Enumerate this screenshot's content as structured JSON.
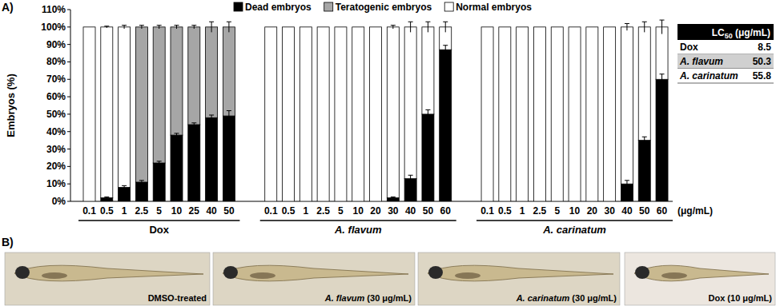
{
  "panel_labels": [
    "A)",
    "B)"
  ],
  "chart_data": {
    "type": "bar",
    "stacked": true,
    "y_label": "Embryos (%)",
    "x_label": "(μg/mL)",
    "categories": [
      "0.1",
      "0.5",
      "1",
      "2.5",
      "5",
      "10",
      "25",
      "40",
      "50",
      "0.1",
      "0.5",
      "1",
      "2.5",
      "5",
      "10",
      "20",
      "30",
      "40",
      "50",
      "60",
      "0.1",
      "0.5",
      "1",
      "2.5",
      "5",
      "10",
      "20",
      "30",
      "40",
      "50",
      "60"
    ],
    "groups": [
      {
        "label": "Dox",
        "size": 9
      },
      {
        "label": "A. flavum",
        "size": 11
      },
      {
        "label": "A. carinatum",
        "size": 11
      }
    ],
    "series": [
      {
        "name": "Dead embryos",
        "color": "#000000",
        "values": [
          0,
          2,
          8,
          11,
          22,
          38,
          44,
          48,
          49,
          0,
          0,
          0,
          0,
          0,
          0,
          0,
          2,
          13,
          50,
          87,
          0,
          0,
          0,
          0,
          0,
          0,
          0,
          0,
          10,
          35,
          70
        ],
        "errors": [
          null,
          0.5,
          1,
          1,
          1,
          1,
          1,
          1.5,
          3,
          null,
          null,
          null,
          null,
          null,
          null,
          null,
          0.5,
          2,
          2.5,
          2.5,
          null,
          null,
          null,
          null,
          null,
          null,
          null,
          null,
          2,
          2,
          3
        ]
      },
      {
        "name": "Teratogenic embryos",
        "color": "#a6a6a6",
        "values": [
          0,
          0,
          0,
          89,
          78,
          62,
          56,
          52,
          51,
          0,
          0,
          0,
          0,
          0,
          0,
          0,
          0,
          0,
          0,
          0,
          0,
          0,
          0,
          0,
          0,
          0,
          0,
          0,
          0,
          0,
          0
        ],
        "errors": [
          null,
          null,
          null,
          1,
          1,
          1,
          1,
          3,
          3,
          null,
          null,
          null,
          null,
          null,
          null,
          null,
          null,
          null,
          null,
          null,
          null,
          null,
          null,
          null,
          null,
          null,
          null,
          null,
          null,
          null,
          null
        ]
      },
      {
        "name": "Normal embryos",
        "color": "#ffffff",
        "values": [
          100,
          98,
          92,
          0,
          0,
          0,
          0,
          0,
          0,
          100,
          100,
          100,
          100,
          100,
          100,
          100,
          98,
          87,
          50,
          13,
          100,
          100,
          100,
          100,
          100,
          100,
          100,
          100,
          90,
          65,
          30
        ],
        "errors": [
          null,
          0.5,
          1,
          null,
          null,
          null,
          null,
          null,
          null,
          null,
          null,
          null,
          null,
          null,
          null,
          null,
          1,
          3,
          3,
          3,
          null,
          null,
          null,
          null,
          null,
          null,
          null,
          null,
          2,
          3,
          4
        ]
      }
    ],
    "ylim": [
      0,
      110
    ],
    "yticks": [
      {
        "value": 0,
        "label": "0%"
      },
      {
        "value": 10,
        "label": "10%"
      },
      {
        "value": 20,
        "label": "20%"
      },
      {
        "value": 30,
        "label": "30%"
      },
      {
        "value": 40,
        "label": "40%"
      },
      {
        "value": 50,
        "label": "50%"
      },
      {
        "value": 60,
        "label": "60%"
      },
      {
        "value": 70,
        "label": "70%"
      },
      {
        "value": 80,
        "label": "80%"
      },
      {
        "value": 90,
        "label": "90%"
      },
      {
        "value": 100,
        "label": "100%"
      },
      {
        "value": 110,
        "label": "110%"
      }
    ],
    "legend": "top"
  },
  "lc50_table": {
    "header": {
      "main": "LC",
      "sub": "50",
      "unit": "(μg/mL)"
    },
    "rows": [
      [
        "Dox",
        8.5
      ],
      [
        "A. flavum",
        50.3
      ],
      [
        "A. carinatum",
        55.8
      ]
    ]
  },
  "images": [
    {
      "name": "DMSO-treated"
    },
    {
      "name": "A. flavum",
      "dose": "(30 μg/mL)"
    },
    {
      "name": "A. carinatum",
      "dose": "(30 μg/mL)"
    },
    {
      "name": "Dox",
      "dose": "(10 μg/mL)"
    }
  ]
}
